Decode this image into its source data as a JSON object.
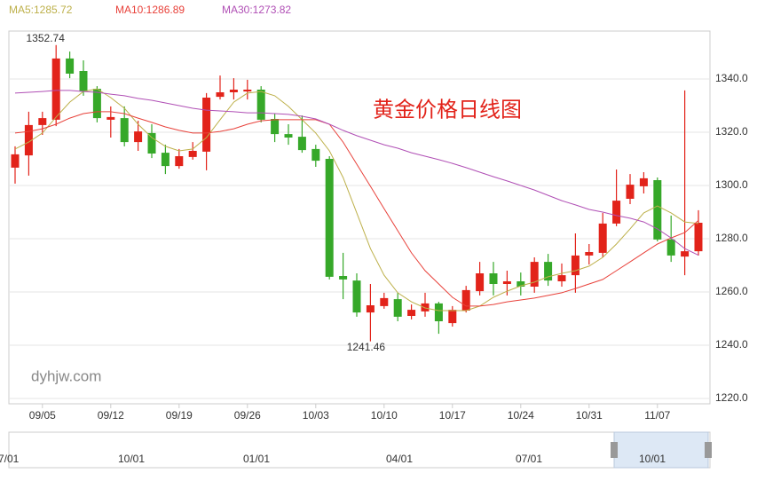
{
  "chart_data": {
    "type": "candlestick",
    "title": "黄金价格日线图",
    "watermark": "dyhjw.com",
    "categories": [
      null,
      null,
      "09/05",
      null,
      null,
      null,
      null,
      "09/12",
      null,
      null,
      null,
      null,
      "09/19",
      null,
      null,
      null,
      null,
      "09/26",
      null,
      null,
      null,
      null,
      "10/03",
      null,
      null,
      null,
      null,
      "10/10",
      null,
      null,
      null,
      null,
      "10/17",
      null,
      null,
      null,
      null,
      "10/24",
      null,
      null,
      null,
      null,
      "10/31",
      null,
      null,
      null,
      null,
      "11/07",
      null,
      null,
      null
    ],
    "open": [
      1306.7,
      1311.3,
      1322.7,
      1324.7,
      1347.7,
      1343,
      1336.3,
      1324.7,
      1325.3,
      1316.3,
      1319.7,
      1312.3,
      1307.3,
      1310.7,
      1312.7,
      1333.3,
      1335,
      1335.3,
      1336,
      1325,
      1319.3,
      1318.3,
      1313.7,
      1310,
      1266,
      1264.3,
      1252.3,
      1254.7,
      1257.3,
      1251,
      1252.7,
      1255.7,
      1248.3,
      1253,
      1260.3,
      1267,
      1263,
      1264,
      1262,
      1271.3,
      1264,
      1266.3,
      1273.7,
      1274.7,
      1285.7,
      1295,
      1299.7,
      1302,
      1279.7,
      1273.3,
      1275.3
    ],
    "high": [
      1314.7,
      1327.7,
      1327.7,
      1352.74,
      1350.3,
      1347,
      1337.3,
      1329.7,
      1329.7,
      1324.3,
      1323,
      1315.3,
      1313.7,
      1316.3,
      1334.7,
      1341.3,
      1340.3,
      1339.7,
      1337.3,
      1327,
      1323,
      1326.3,
      1315.3,
      1311,
      1274.7,
      1267,
      1263,
      1259.7,
      1259.7,
      1255.3,
      1259.7,
      1256.3,
      1254.7,
      1262.3,
      1271.3,
      1271.3,
      1268,
      1267.3,
      1273,
      1274.3,
      1270.7,
      1282,
      1278,
      1289.7,
      1306,
      1304.3,
      1305,
      1303,
      1288.7,
      1335.7,
      1290.7
    ],
    "low": [
      1300.7,
      1303.7,
      1319,
      1322.3,
      1340.3,
      1333.7,
      1323.7,
      1318,
      1314.7,
      1313,
      1310.3,
      1304.3,
      1306.3,
      1309.7,
      1305.7,
      1332.3,
      1332.3,
      1332.3,
      1323.7,
      1316.3,
      1315.3,
      1312.3,
      1307,
      1264.7,
      1257.3,
      1250.7,
      1241.46,
      1253.7,
      1249,
      1249.7,
      1250.7,
      1244.3,
      1247,
      1252.3,
      1258.7,
      1258.7,
      1258.7,
      1258.7,
      1259.7,
      1262.3,
      1262,
      1259.7,
      1270.3,
      1273,
      1284.7,
      1293,
      1297,
      1279,
      1271.3,
      1266.3,
      1273.7
    ],
    "close": [
      1311.7,
      1322.7,
      1325.3,
      1347.7,
      1342,
      1335.3,
      1325.3,
      1325.7,
      1316.3,
      1320.3,
      1312,
      1307.3,
      1311,
      1313,
      1333,
      1335,
      1336,
      1336,
      1324.7,
      1319.3,
      1318,
      1313.3,
      1309.3,
      1265.7,
      1264.7,
      1252.3,
      1255,
      1257.7,
      1250.7,
      1253.3,
      1255.7,
      1249,
      1253.3,
      1260.7,
      1267,
      1263,
      1264,
      1262,
      1271.3,
      1264.3,
      1266.3,
      1273.7,
      1275,
      1285.7,
      1294.3,
      1300.3,
      1302.7,
      1279.7,
      1273.7,
      1275.3,
      1286
    ],
    "up_color": "#e2231a",
    "down_color": "#36a829",
    "series": [
      {
        "name": "MA5:1285.72",
        "color": "#bdb04a",
        "values": [
          1313.7,
          1316.3,
          1319.7,
          1325.7,
          1331.3,
          1335.3,
          1336.3,
          1333,
          1329,
          1323,
          1318,
          1314.7,
          1313,
          1313.7,
          1318,
          1324.7,
          1331.3,
          1334.7,
          1335.3,
          1333.7,
          1329.7,
          1324.7,
          1319.7,
          1313,
          1303,
          1289.7,
          1276.3,
          1266.3,
          1259.7,
          1256.3,
          1254,
          1253,
          1253,
          1253,
          1254.7,
          1258,
          1260.3,
          1262.3,
          1263.7,
          1265.7,
          1267,
          1268,
          1269.7,
          1273,
          1278,
          1283.7,
          1289.7,
          1292.3,
          1289.7,
          1286.3,
          1285.72
        ]
      },
      {
        "name": "MA10:1286.89",
        "color": "#e8413a",
        "values": [
          1319.7,
          1320.3,
          1321.3,
          1323,
          1325.3,
          1327,
          1327.7,
          1327.7,
          1327,
          1325.3,
          1323.7,
          1322,
          1320.7,
          1319.7,
          1319.7,
          1320.3,
          1321.3,
          1323,
          1324.3,
          1324.7,
          1324.7,
          1324.7,
          1324.7,
          1323,
          1316.3,
          1308,
          1299.7,
          1291.3,
          1283,
          1274.7,
          1268,
          1263,
          1258,
          1254.7,
          1254.7,
          1255.3,
          1256.3,
          1257,
          1257.7,
          1258.7,
          1259.7,
          1261.3,
          1263,
          1264.7,
          1268,
          1271.3,
          1274.7,
          1278,
          1280.3,
          1282.3,
          1286.89
        ]
      },
      {
        "name": "MA30:1273.82",
        "color": "#b04fb5",
        "values": [
          1334.7,
          1335,
          1335.3,
          1335.7,
          1335.7,
          1335.3,
          1335,
          1334.3,
          1333.7,
          1332.7,
          1332,
          1331,
          1330,
          1329,
          1328.3,
          1328,
          1327.7,
          1327.3,
          1327.3,
          1327,
          1326.7,
          1326,
          1325,
          1323,
          1320.7,
          1318.7,
          1317,
          1315.3,
          1314,
          1312.3,
          1311,
          1309.7,
          1308.3,
          1306.7,
          1305,
          1303.3,
          1301.7,
          1300,
          1298.3,
          1296.3,
          1294.3,
          1292.7,
          1291,
          1290,
          1288.7,
          1287.7,
          1286.3,
          1283.7,
          1280.3,
          1276.3,
          1273.82
        ]
      }
    ],
    "ylim": [
      1218,
      1358
    ],
    "yticks": [
      {
        "value": 1220,
        "label": "1220.0"
      },
      {
        "value": 1240,
        "label": "1240.0"
      },
      {
        "value": 1260,
        "label": "1260.0"
      },
      {
        "value": 1280,
        "label": "1280.0"
      },
      {
        "value": 1300,
        "label": "1300.0"
      },
      {
        "value": 1320,
        "label": "1320.0"
      },
      {
        "value": 1340,
        "label": "1340.0"
      }
    ],
    "grid": true,
    "navigator_labels": [
      "7/01",
      "10/01",
      "01/01",
      "04/01",
      "07/01",
      "10/01"
    ]
  }
}
